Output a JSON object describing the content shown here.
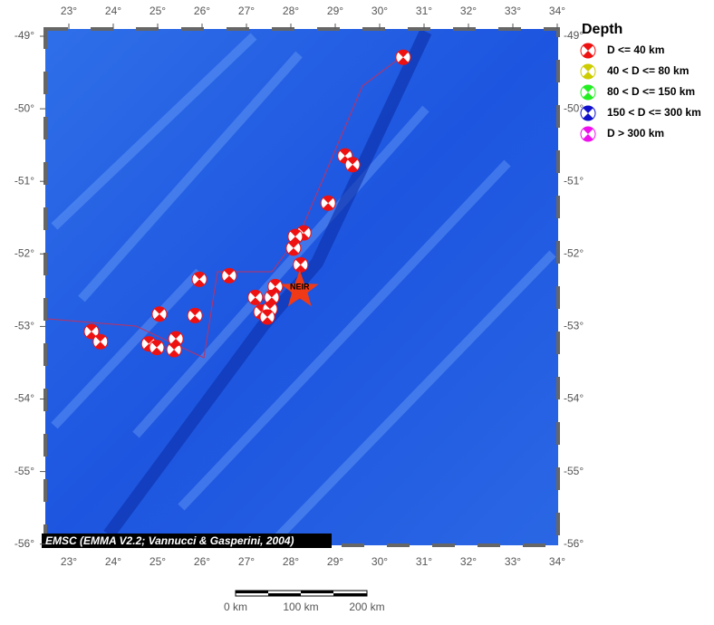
{
  "map": {
    "lon_ticks": [
      {
        "value": 23,
        "label": "23°"
      },
      {
        "value": 24,
        "label": "24°"
      },
      {
        "value": 25,
        "label": "25°"
      },
      {
        "value": 26,
        "label": "26°"
      },
      {
        "value": 27,
        "label": "27°"
      },
      {
        "value": 28,
        "label": "28°"
      },
      {
        "value": 29,
        "label": "29°"
      },
      {
        "value": 30,
        "label": "30°"
      },
      {
        "value": 31,
        "label": "31°"
      },
      {
        "value": 32,
        "label": "32°"
      },
      {
        "value": 33,
        "label": "33°"
      },
      {
        "value": 34,
        "label": "34°"
      }
    ],
    "lat_ticks": [
      {
        "value": -49,
        "label": "-49°"
      },
      {
        "value": -50,
        "label": "-50°"
      },
      {
        "value": -51,
        "label": "-51°"
      },
      {
        "value": -52,
        "label": "-52°"
      },
      {
        "value": -53,
        "label": "-53°"
      },
      {
        "value": -54,
        "label": "-54°"
      },
      {
        "value": -55,
        "label": "-55°"
      },
      {
        "value": -56,
        "label": "-56°"
      }
    ],
    "credit": "EMSC (EMMA V2.2; Vannucci & Gasperini, 2004)",
    "epicenter": {
      "label": "NEIR",
      "lon": 28.2,
      "lat": -52.5
    },
    "events": [
      {
        "lon": 30.53,
        "lat": -49.29
      },
      {
        "lon": 29.22,
        "lat": -50.65
      },
      {
        "lon": 29.39,
        "lat": -50.77
      },
      {
        "lon": 28.84,
        "lat": -51.3
      },
      {
        "lon": 28.29,
        "lat": -51.71
      },
      {
        "lon": 28.1,
        "lat": -51.76
      },
      {
        "lon": 28.06,
        "lat": -51.92
      },
      {
        "lon": 28.22,
        "lat": -52.15
      },
      {
        "lon": 25.94,
        "lat": -52.35
      },
      {
        "lon": 26.61,
        "lat": -52.3
      },
      {
        "lon": 27.65,
        "lat": -52.45
      },
      {
        "lon": 27.2,
        "lat": -52.6
      },
      {
        "lon": 27.57,
        "lat": -52.6
      },
      {
        "lon": 28.18,
        "lat": -52.52
      },
      {
        "lon": 27.33,
        "lat": -52.8
      },
      {
        "lon": 27.53,
        "lat": -52.76
      },
      {
        "lon": 27.47,
        "lat": -52.87
      },
      {
        "lon": 25.84,
        "lat": -52.85
      },
      {
        "lon": 25.04,
        "lat": -52.83
      },
      {
        "lon": 23.51,
        "lat": -53.07
      },
      {
        "lon": 23.71,
        "lat": -53.21
      },
      {
        "lon": 24.8,
        "lat": -53.24
      },
      {
        "lon": 24.98,
        "lat": -53.29
      },
      {
        "lon": 25.37,
        "lat": -53.32
      },
      {
        "lon": 25.41,
        "lat": -53.17
      }
    ],
    "legend": {
      "title": "Depth",
      "items": [
        {
          "label": "D <= 40 km",
          "color": "#ee1111"
        },
        {
          "label": "40 < D <= 80 km",
          "color": "#cccc00"
        },
        {
          "label": "80 < D <= 150 km",
          "color": "#22ee22"
        },
        {
          "label": "150 < D <= 300 km",
          "color": "#1111cc"
        },
        {
          "label": "D > 300 km",
          "color": "#ee11ee"
        }
      ]
    },
    "scale_labels": [
      "0 km",
      "100 km",
      "200 km"
    ]
  }
}
